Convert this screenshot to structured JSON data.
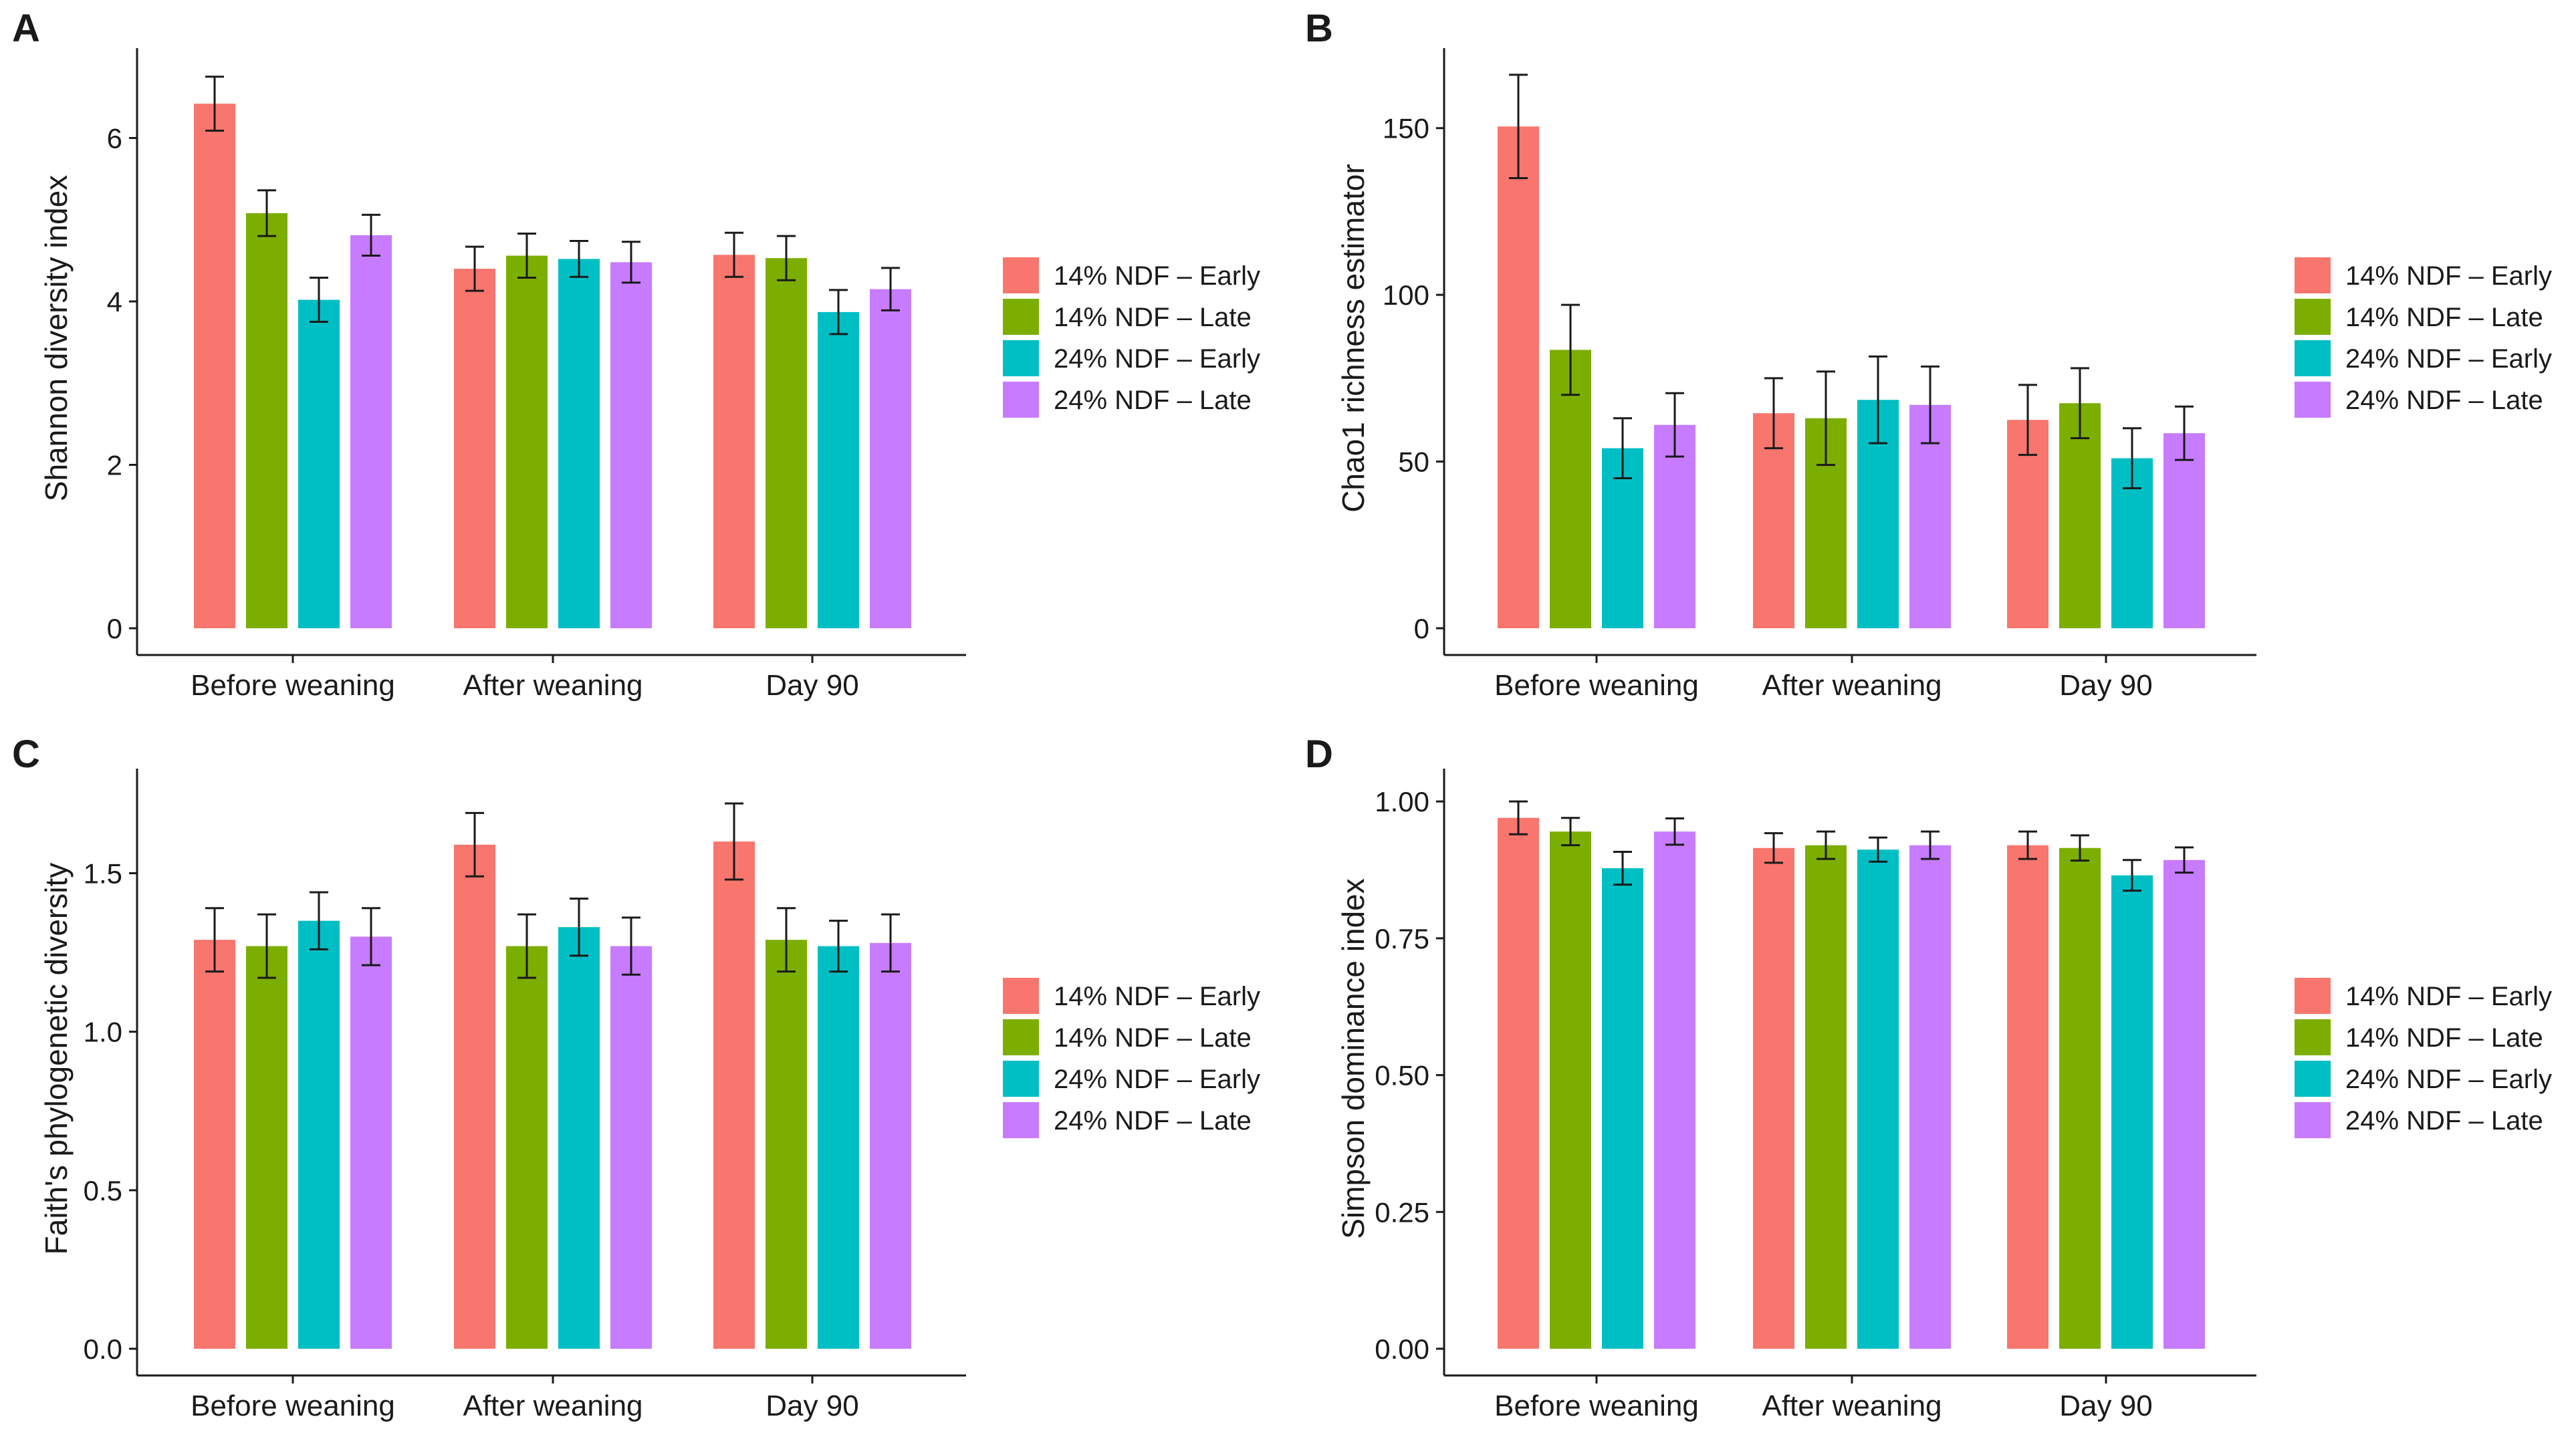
{
  "chart_data": [
    {
      "panel": "A",
      "type": "bar",
      "ylabel": "Shannon diversity index",
      "categories": [
        "Before weaning",
        "After weaning",
        "Day 90"
      ],
      "ylim": [
        0,
        7.1
      ],
      "yticks": [
        0,
        2,
        4,
        6
      ],
      "ytick_labels": [
        "0",
        "2",
        "4",
        "6"
      ],
      "series": [
        {
          "name": "14% NDF – Early",
          "values": [
            6.42,
            4.4,
            4.57
          ],
          "errors": [
            0.33,
            0.27,
            0.27
          ]
        },
        {
          "name": "14% NDF – Late",
          "values": [
            5.08,
            4.56,
            4.53
          ],
          "errors": [
            0.28,
            0.27,
            0.27
          ]
        },
        {
          "name": "24% NDF – Early",
          "values": [
            4.02,
            4.52,
            3.87
          ],
          "errors": [
            0.27,
            0.22,
            0.27
          ]
        },
        {
          "name": "24% NDF – Late",
          "values": [
            4.81,
            4.48,
            4.15
          ],
          "errors": [
            0.25,
            0.25,
            0.26
          ]
        }
      ]
    },
    {
      "panel": "B",
      "type": "bar",
      "ylabel": "Chao1 richness estimator",
      "categories": [
        "Before weaning",
        "After weaning",
        "Day 90"
      ],
      "ylim": [
        0,
        174
      ],
      "yticks": [
        0,
        50,
        100,
        150
      ],
      "ytick_labels": [
        "0",
        "50",
        "100",
        "150"
      ],
      "series": [
        {
          "name": "14% NDF – Early",
          "values": [
            150.5,
            64.5,
            62.5
          ],
          "errors": [
            15.5,
            10.5,
            10.5
          ]
        },
        {
          "name": "14% NDF – Late",
          "values": [
            83.5,
            63.0,
            67.5
          ],
          "errors": [
            13.5,
            14.0,
            10.5
          ]
        },
        {
          "name": "24% NDF – Early",
          "values": [
            54.0,
            68.5,
            51.0
          ],
          "errors": [
            9.0,
            13.0,
            9.0
          ]
        },
        {
          "name": "24% NDF – Late",
          "values": [
            61.0,
            67.0,
            58.5
          ],
          "errors": [
            9.5,
            11.5,
            8.0
          ]
        }
      ]
    },
    {
      "panel": "C",
      "type": "bar",
      "ylabel": "Faith's phylogenetic diversity",
      "categories": [
        "Before weaning",
        "After weaning",
        "Day 90"
      ],
      "ylim": [
        0,
        1.83
      ],
      "yticks": [
        0,
        0.5,
        1,
        1.5
      ],
      "ytick_labels": [
        "0.0",
        "0.5",
        "1.0",
        "1.5"
      ],
      "series": [
        {
          "name": "14% NDF – Early",
          "values": [
            1.29,
            1.59,
            1.6
          ],
          "errors": [
            0.1,
            0.1,
            0.12
          ]
        },
        {
          "name": "14% NDF – Late",
          "values": [
            1.27,
            1.27,
            1.29
          ],
          "errors": [
            0.1,
            0.1,
            0.1
          ]
        },
        {
          "name": "24% NDF – Early",
          "values": [
            1.35,
            1.33,
            1.27
          ],
          "errors": [
            0.09,
            0.09,
            0.08
          ]
        },
        {
          "name": "24% NDF – Late",
          "values": [
            1.3,
            1.27,
            1.28
          ],
          "errors": [
            0.09,
            0.09,
            0.09
          ]
        }
      ]
    },
    {
      "panel": "D",
      "type": "bar",
      "ylabel": "Simpson dominance index",
      "categories": [
        "Before weaning",
        "After weaning",
        "Day 90"
      ],
      "ylim": [
        0,
        1.06
      ],
      "yticks": [
        0,
        0.25,
        0.5,
        0.75,
        1
      ],
      "ytick_labels": [
        "0.00",
        "0.25",
        "0.50",
        "0.75",
        "1.00"
      ],
      "series": [
        {
          "name": "14% NDF – Early",
          "values": [
            0.97,
            0.915,
            0.92
          ],
          "errors": [
            0.03,
            0.027,
            0.025
          ]
        },
        {
          "name": "14% NDF – Late",
          "values": [
            0.945,
            0.92,
            0.915
          ],
          "errors": [
            0.025,
            0.025,
            0.023
          ]
        },
        {
          "name": "24% NDF – Early",
          "values": [
            0.878,
            0.912,
            0.865
          ],
          "errors": [
            0.03,
            0.022,
            0.028
          ]
        },
        {
          "name": "24% NDF – Late",
          "values": [
            0.945,
            0.92,
            0.893
          ],
          "errors": [
            0.024,
            0.025,
            0.023
          ]
        }
      ]
    }
  ],
  "series_colors": [
    "#F8766D",
    "#7CAE00",
    "#00BFC4",
    "#C77CFF"
  ],
  "legend": {
    "position": "right",
    "labels": [
      "14% NDF – Early",
      "14% NDF – Late",
      "24% NDF – Early",
      "24% NDF – Late"
    ]
  }
}
